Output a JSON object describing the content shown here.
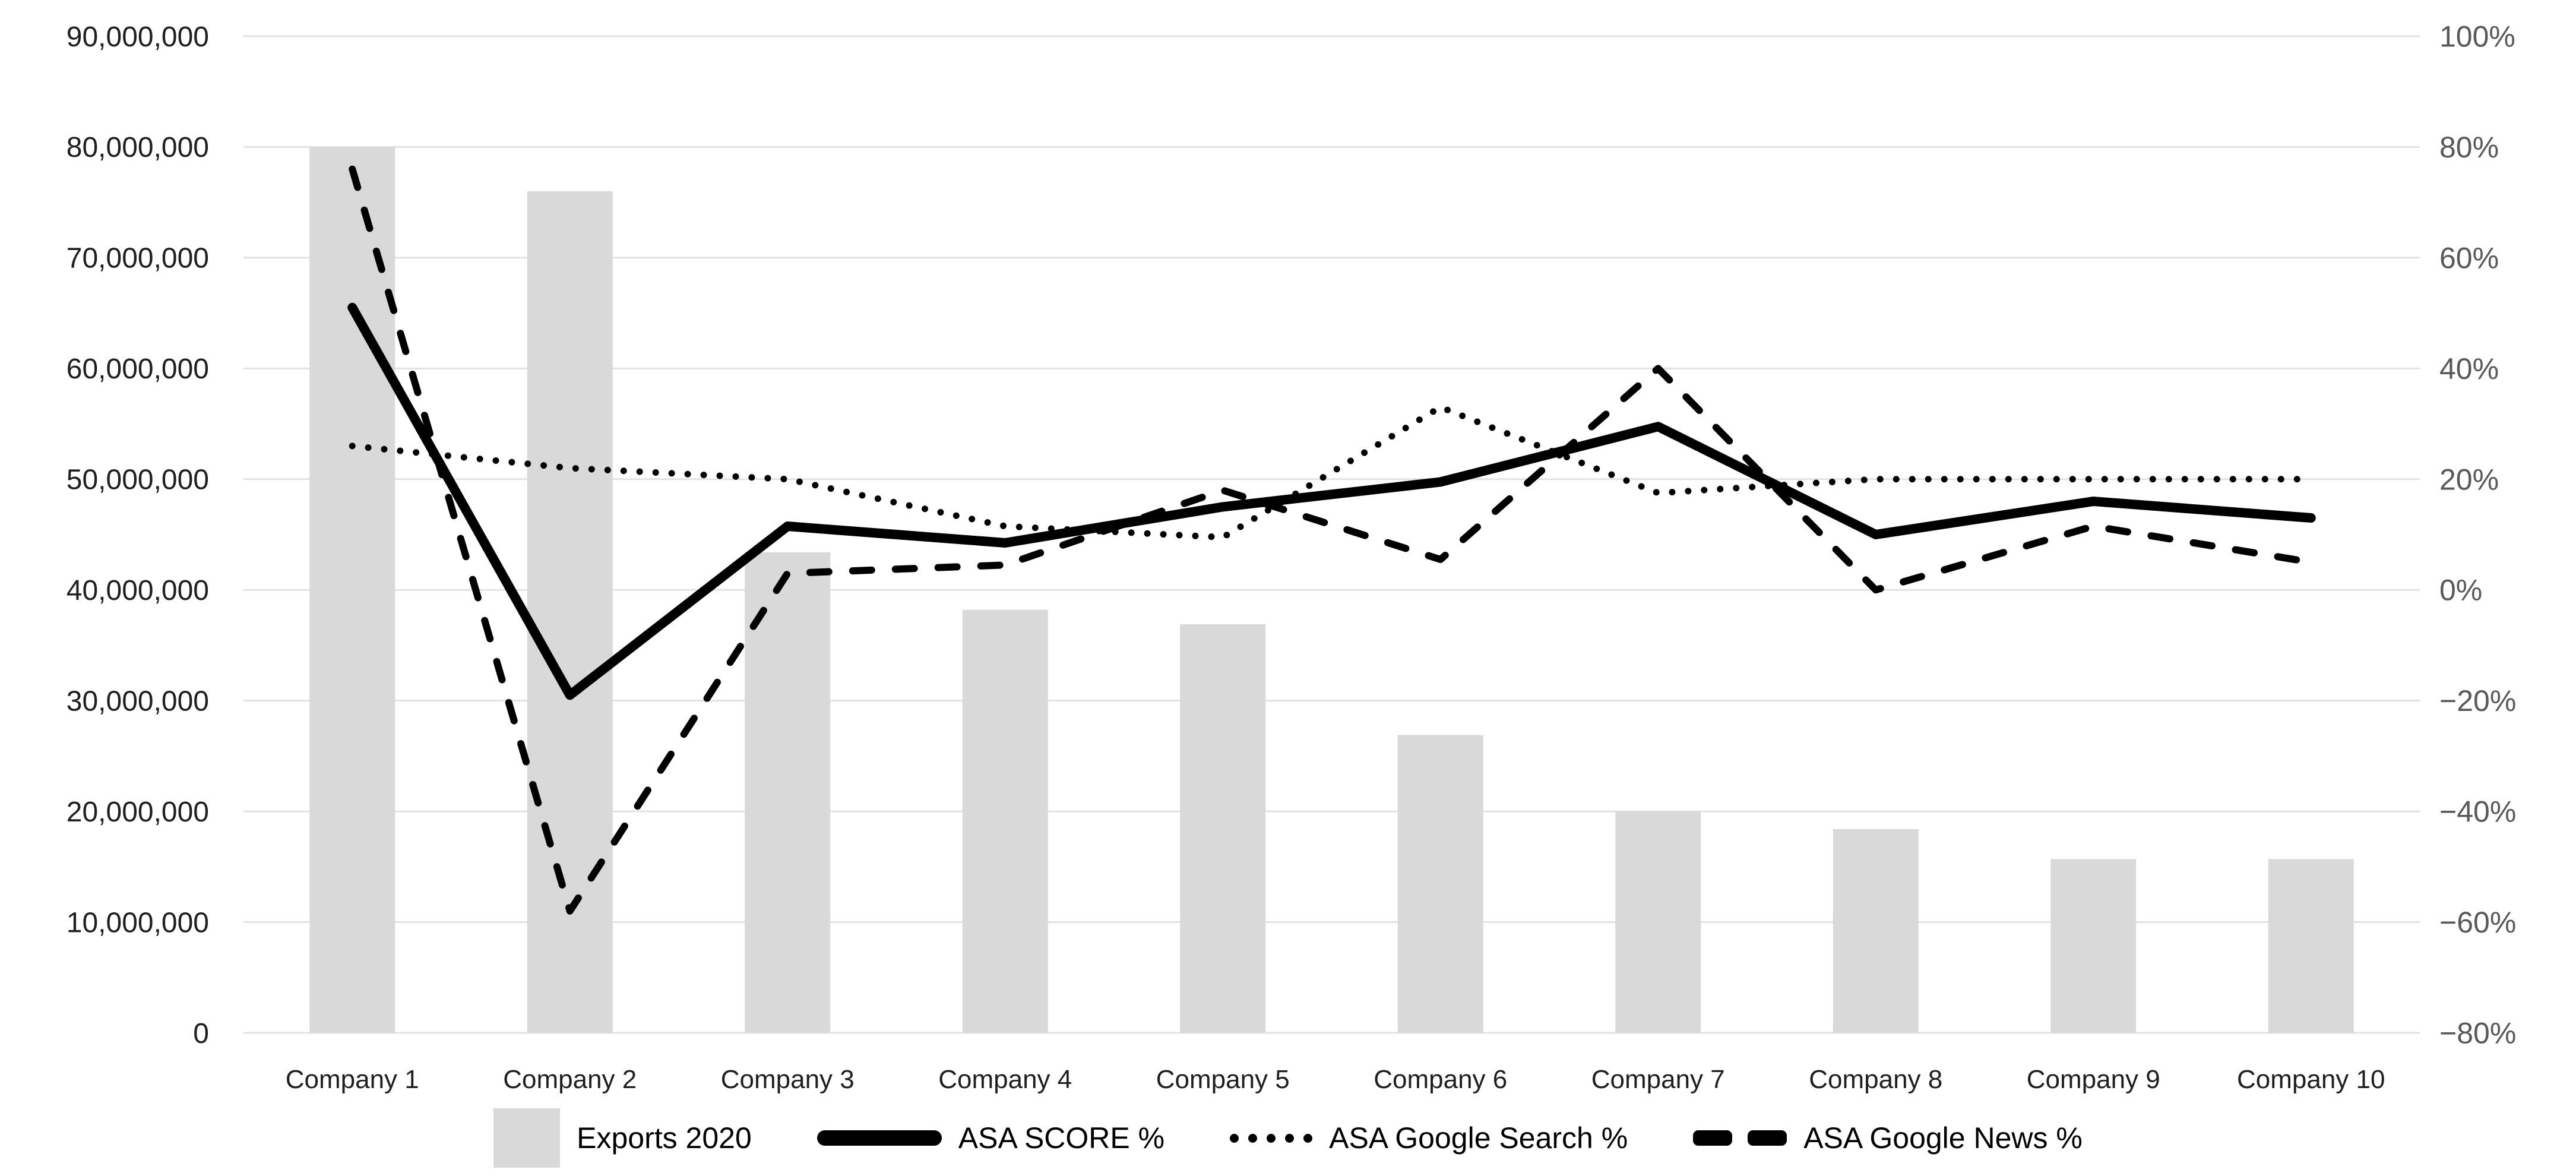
{
  "chart_data": {
    "type": "combo-bar-line",
    "title": "",
    "categories": [
      "Company 1",
      "Company 2",
      "Company 3",
      "Company 4",
      "Company 5",
      "Company 6",
      "Company 7",
      "Company 8",
      "Company 9",
      "Company 10"
    ],
    "series": [
      {
        "name": "Exports 2020",
        "type": "bar",
        "axis": "left",
        "color": "#d9d9d9",
        "values": [
          80000000,
          76000000,
          43400000,
          38200000,
          36900000,
          26900000,
          20000000,
          18400000,
          15700000,
          15700000
        ]
      },
      {
        "name": "ASA SCORE %",
        "type": "line",
        "style": "solid",
        "axis": "right",
        "color": "#000000",
        "values": [
          51,
          -19,
          11.5,
          8.5,
          15,
          19.5,
          29.5,
          10,
          16,
          13
        ]
      },
      {
        "name": "ASA Google Search %",
        "type": "line",
        "style": "dotted",
        "axis": "right",
        "color": "#000000",
        "values": [
          26,
          22,
          20,
          11.5,
          9.5,
          33,
          17.5,
          20,
          20,
          20
        ]
      },
      {
        "name": "ASA Google News %",
        "type": "line",
        "style": "dashed",
        "axis": "right",
        "color": "#000000",
        "values": [
          76,
          -58,
          3,
          4.5,
          18,
          5.5,
          40,
          0,
          11.5,
          5
        ]
      }
    ],
    "left_axis": {
      "min": 0,
      "max": 90000000,
      "step": 10000000,
      "tick_labels": [
        "0",
        "10,000,000",
        "20,000,000",
        "30,000,000",
        "40,000,000",
        "50,000,000",
        "60,000,000",
        "70,000,000",
        "80,000,000",
        "90,000,000"
      ]
    },
    "right_axis": {
      "min": -80,
      "max": 100,
      "step": 20,
      "tick_labels": [
        "−80%",
        "−60%",
        "−40%",
        "−20%",
        "0%",
        "20%",
        "40%",
        "60%",
        "80%",
        "100%"
      ]
    },
    "grid": "horizontal",
    "gridline_color": "#e2e2e2",
    "legend_position": "bottom"
  },
  "legend": {
    "items": [
      {
        "label": "Exports 2020",
        "marker": "bar"
      },
      {
        "label": "ASA SCORE %",
        "marker": "solid"
      },
      {
        "label": "ASA Google Search %",
        "marker": "dotted"
      },
      {
        "label": "ASA Google News %",
        "marker": "dashed"
      }
    ]
  },
  "colors": {
    "bar": "#d9d9d9",
    "line": "#000000",
    "grid": "#e2e2e2",
    "left_tick_text": "#1f1f1f",
    "right_tick_text": "#595959",
    "x_tick_text": "#1f1f1f"
  }
}
